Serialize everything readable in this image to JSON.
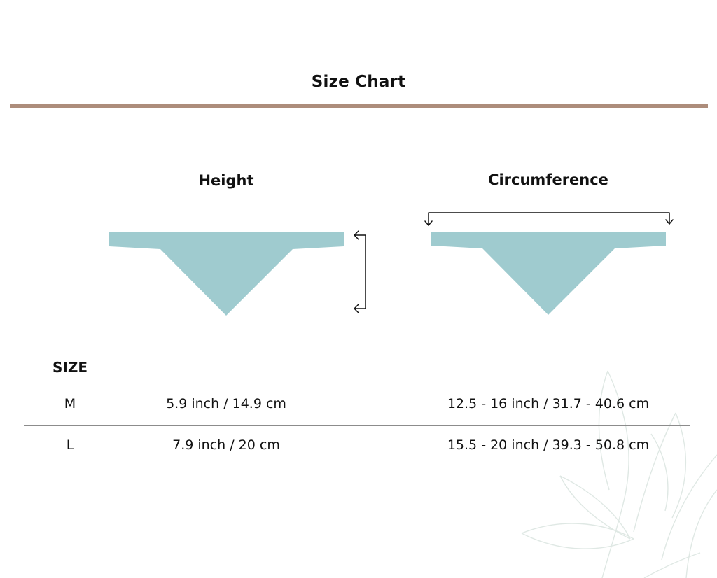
{
  "title": "Size Chart",
  "columns": {
    "height": "Height",
    "circumference": "Circumference"
  },
  "table": {
    "header": "SIZE",
    "rows": [
      {
        "size": "M",
        "height": "5.9 inch / 14.9 cm",
        "circumference": "12.5 - 16 inch / 31.7 - 40.6 cm"
      },
      {
        "size": "L",
        "height": "7.9 inch / 20 cm",
        "circumference": "15.5 - 20 inch / 39.3 - 50.8 cm"
      }
    ]
  },
  "colors": {
    "accent_bar": "#ad8d7b",
    "bandana": "#9fcbcf",
    "leaf_outline": "#dfe8e4"
  },
  "icons": [
    "bandana-illustration",
    "height-arrow-icon",
    "circumference-arrow-icon",
    "leaf-decoration"
  ]
}
